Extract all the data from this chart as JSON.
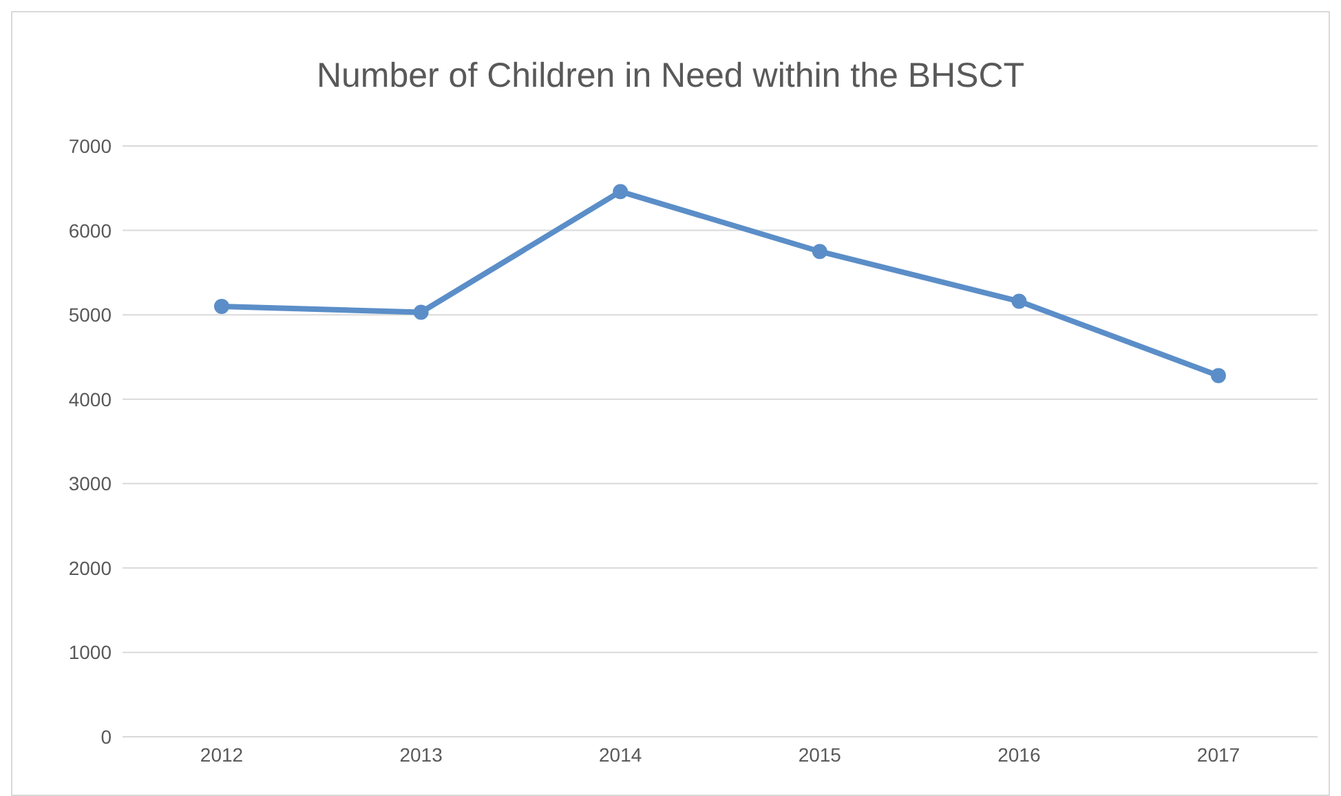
{
  "chart_data": {
    "type": "line",
    "title": "Number of Children in Need within the BHSCT",
    "categories": [
      "2012",
      "2013",
      "2014",
      "2015",
      "2016",
      "2017"
    ],
    "series": [
      {
        "color": "#5b8ec8",
        "values": [
          5100,
          5030,
          6460,
          5750,
          5160,
          4280
        ]
      }
    ],
    "ylim": [
      0,
      7000
    ],
    "yticks": [
      0,
      1000,
      2000,
      3000,
      4000,
      5000,
      6000,
      7000
    ],
    "grid": "y",
    "marker": "circle",
    "line_style": "solid"
  }
}
